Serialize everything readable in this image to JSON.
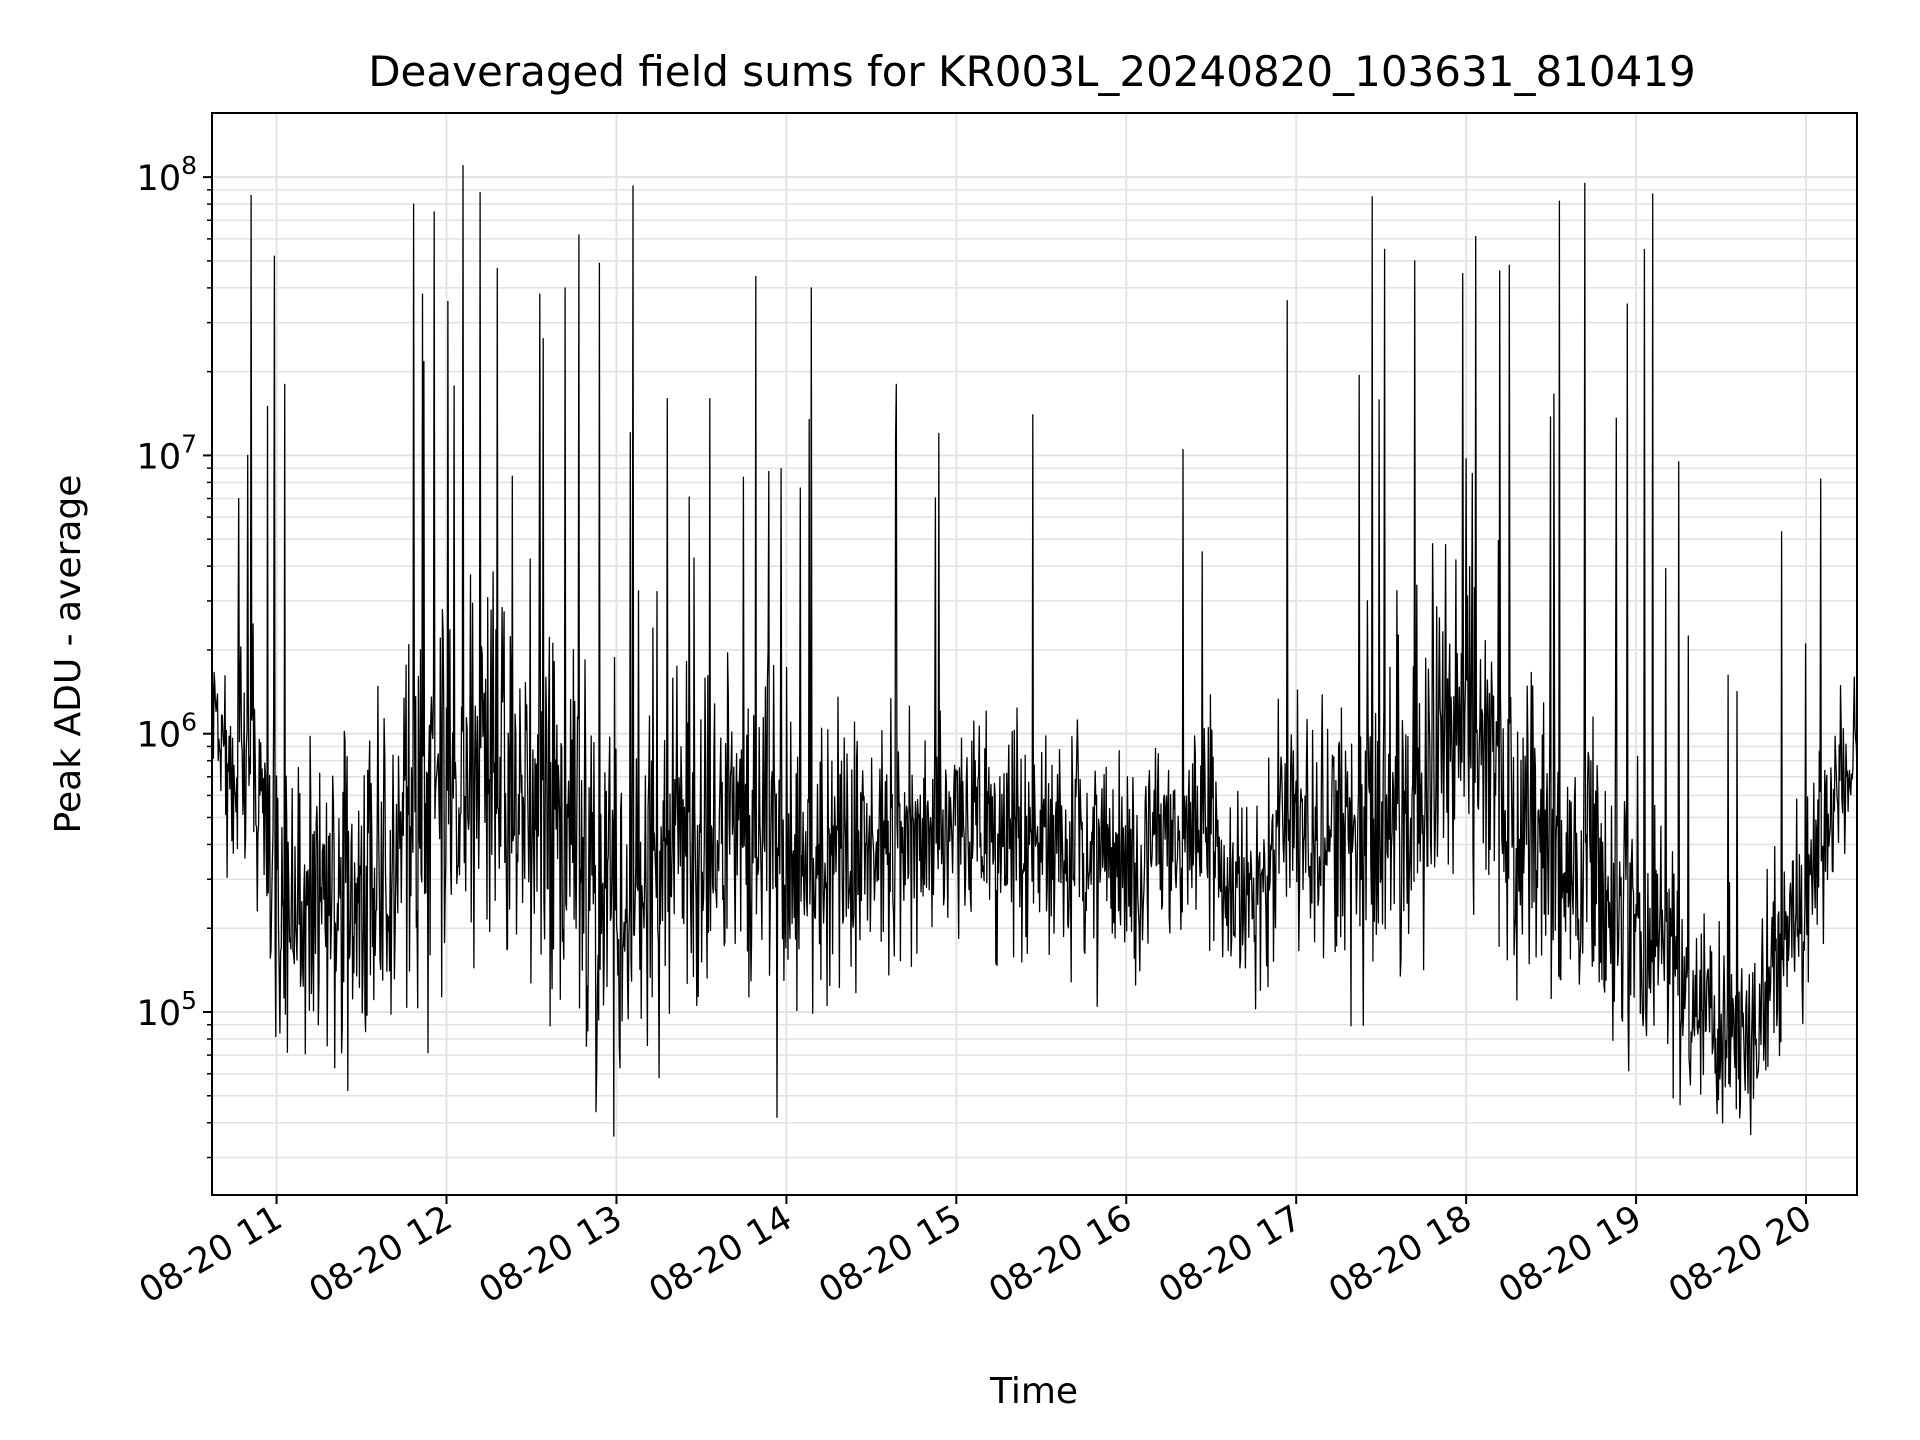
{
  "chart_data": {
    "type": "line",
    "title": "Deaveraged field sums for KR003L_20240820_103631_810419",
    "xlabel": "Time",
    "ylabel": "Peak ADU - average",
    "yscale": "log",
    "grid": true,
    "grid_minor": true,
    "line_color": "#000000",
    "x_tick_labels": [
      "08-20 11",
      "08-20 12",
      "08-20 13",
      "08-20 14",
      "08-20 15",
      "08-20 16",
      "08-20 17",
      "08-20 18",
      "08-20 19",
      "08-20 20"
    ],
    "x_tick_hours": [
      11,
      12,
      13,
      14,
      15,
      16,
      17,
      18,
      19,
      20
    ],
    "xlim_hours": [
      10.62,
      20.3
    ],
    "y_tick_bases": [
      "10",
      "10",
      "10",
      "10"
    ],
    "y_tick_exponents": [
      "5",
      "6",
      "7",
      "8"
    ],
    "ylim": [
      22000,
      170000000
    ],
    "series": [
      {
        "x_hours": [
          10.62,
          10.8,
          11.0,
          11.3,
          11.6,
          11.9,
          12.2,
          12.5,
          12.8,
          13.1,
          13.4,
          13.7,
          14.0,
          14.3,
          14.6,
          14.9,
          15.2,
          15.5,
          15.8,
          16.1,
          16.4,
          16.7,
          17.0,
          17.3,
          17.6,
          17.9,
          18.2,
          18.5,
          18.8,
          19.1,
          19.4,
          19.7,
          20.0,
          20.3
        ],
        "median": [
          1100000,
          800000,
          240000,
          260000,
          350000,
          550000,
          650000,
          550000,
          380000,
          300000,
          380000,
          520000,
          380000,
          380000,
          400000,
          480000,
          480000,
          420000,
          360000,
          380000,
          460000,
          220000,
          500000,
          460000,
          480000,
          1000000,
          700000,
          400000,
          250000,
          170000,
          90000,
          80000,
          250000,
          800000
        ],
        "spread_dex": [
          0.18,
          0.35,
          0.42,
          0.4,
          0.42,
          0.45,
          0.5,
          0.5,
          0.5,
          0.48,
          0.45,
          0.45,
          0.38,
          0.33,
          0.3,
          0.28,
          0.28,
          0.3,
          0.3,
          0.3,
          0.3,
          0.28,
          0.3,
          0.33,
          0.45,
          0.5,
          0.45,
          0.38,
          0.38,
          0.33,
          0.25,
          0.25,
          0.3,
          0.15
        ],
        "spikes": [
          [
            10.85,
            86000000
          ],
          [
            10.99,
            52000000
          ],
          [
            11.05,
            18000000
          ],
          [
            10.78,
            7000000
          ],
          [
            10.83,
            10000000
          ],
          [
            11.81,
            80000000
          ],
          [
            11.86,
            38000000
          ],
          [
            11.93,
            75000000
          ],
          [
            12.1,
            110000000
          ],
          [
            12.2,
            88000000
          ],
          [
            12.3,
            47000000
          ],
          [
            12.55,
            38000000
          ],
          [
            12.7,
            40000000
          ],
          [
            12.78,
            62000000
          ],
          [
            12.9,
            49000000
          ],
          [
            13.1,
            93000000
          ],
          [
            13.3,
            16000000
          ],
          [
            13.55,
            16000000
          ],
          [
            13.82,
            44000000
          ],
          [
            14.15,
            40000000
          ],
          [
            14.65,
            18000000
          ],
          [
            14.9,
            12000000
          ],
          [
            15.45,
            14000000
          ],
          [
            16.45,
            4500000
          ],
          [
            16.95,
            36000000
          ],
          [
            17.45,
            85000000
          ],
          [
            17.52,
            55000000
          ],
          [
            17.7,
            50000000
          ],
          [
            17.98,
            45000000
          ],
          [
            18.2,
            46000000
          ],
          [
            18.55,
            82000000
          ],
          [
            18.7,
            95000000
          ],
          [
            18.95,
            35000000
          ],
          [
            19.1,
            87000000
          ],
          [
            19.05,
            55000000
          ],
          [
            20.0,
            2100000
          ]
        ]
      }
    ]
  }
}
